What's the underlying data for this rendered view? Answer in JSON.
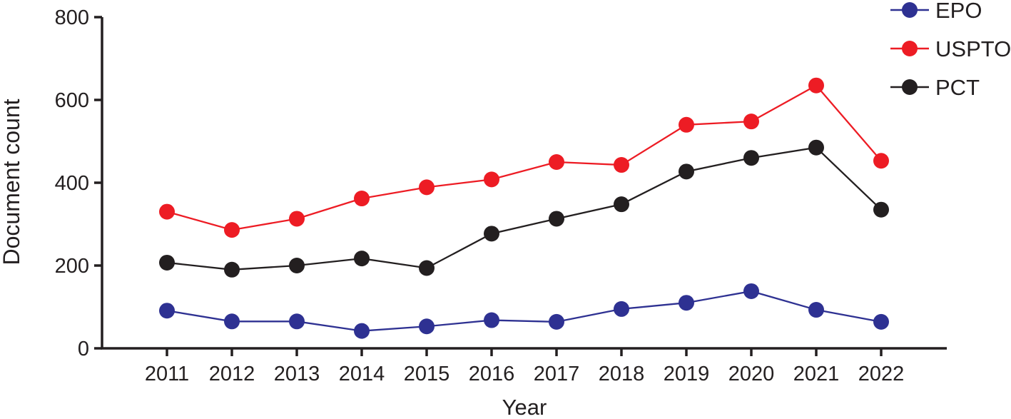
{
  "figure": {
    "background_color": "#ffffff",
    "axis_color": "#231f20"
  },
  "chart_data": {
    "type": "line",
    "title": "",
    "xlabel": "Year",
    "ylabel": "Document count",
    "x": [
      2011,
      2012,
      2013,
      2014,
      2015,
      2016,
      2017,
      2018,
      2019,
      2020,
      2021,
      2022
    ],
    "series": [
      {
        "name": "EPO",
        "color": "#2e3192",
        "values": [
          91,
          65,
          65,
          42,
          53,
          68,
          64,
          95,
          110,
          138,
          93,
          64
        ]
      },
      {
        "name": "USPTO",
        "color": "#ed1c24",
        "values": [
          330,
          286,
          313,
          362,
          389,
          408,
          450,
          443,
          540,
          548,
          635,
          453
        ]
      },
      {
        "name": "PCT",
        "color": "#231f20",
        "values": [
          207,
          190,
          200,
          217,
          194,
          277,
          313,
          348,
          427,
          460,
          485,
          335
        ]
      }
    ],
    "ylim": [
      0,
      800
    ],
    "yticks": [
      0,
      200,
      400,
      600,
      800
    ],
    "grid": false,
    "marker": "circle",
    "legend_position": "top-right"
  }
}
